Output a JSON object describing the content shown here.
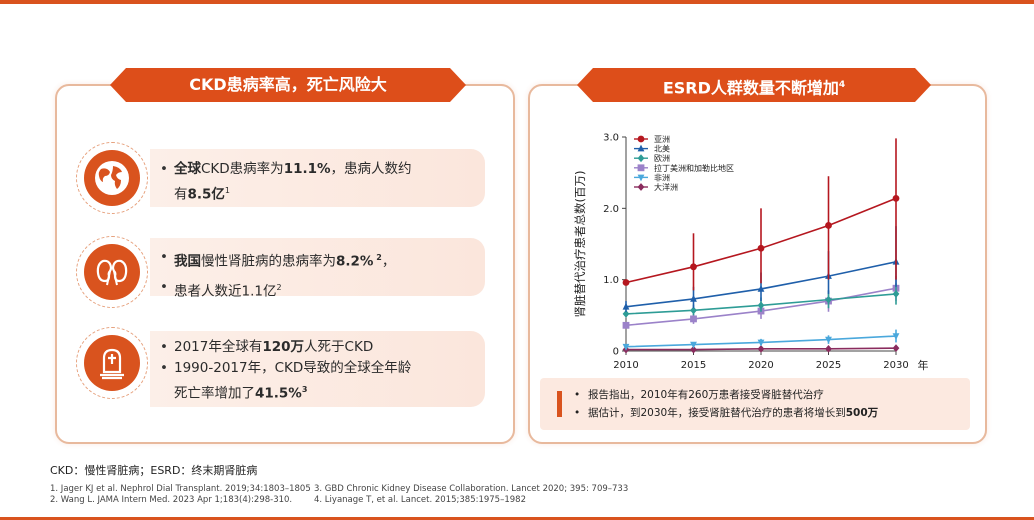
{
  "left_panel": {
    "title": "CKD患病率高，死亡风险大",
    "items": [
      {
        "icon": "globe-icon",
        "lines": [
          {
            "segments": [
              {
                "t": "全球",
                "b": true
              },
              {
                "t": "CKD患病率为",
                "b": false
              },
              {
                "t": "11.1%",
                "b": true
              },
              {
                "t": "，患病人数约",
                "b": false
              }
            ]
          },
          {
            "segments": [
              {
                "t": "有",
                "b": false
              },
              {
                "t": "8.5亿",
                "b": true
              },
              {
                "t": "1",
                "b": false,
                "sup": true
              }
            ],
            "continuation": true
          }
        ]
      },
      {
        "icon": "kidney-icon",
        "lines": [
          {
            "segments": [
              {
                "t": "我国",
                "b": true
              },
              {
                "t": "慢性肾脏病的患病率为",
                "b": false
              },
              {
                "t": "8.2%",
                "b": true
              },
              {
                "t": " 2",
                "b": true,
                "sup": true
              },
              {
                "t": "，",
                "b": false
              }
            ]
          },
          {
            "segments": [
              {
                "t": "患者人数近1.1亿",
                "b": false
              },
              {
                "t": "2",
                "b": false,
                "sup": true
              }
            ]
          }
        ]
      },
      {
        "icon": "tombstone-icon",
        "lines": [
          {
            "segments": [
              {
                "t": "2017年全球有",
                "b": false
              },
              {
                "t": "120万",
                "b": true
              },
              {
                "t": "人死于CKD",
                "b": false
              }
            ]
          },
          {
            "segments": [
              {
                "t": "1990-2017年，CKD导致的全球全年龄",
                "b": false
              }
            ]
          },
          {
            "segments": [
              {
                "t": "死亡率增加了",
                "b": false
              },
              {
                "t": "41.5%",
                "b": true
              },
              {
                "t": "3",
                "b": true,
                "sup": true
              }
            ],
            "continuation": true
          }
        ]
      }
    ]
  },
  "right_panel": {
    "title": "ESRD人群数量不断增加",
    "title_sup": "4",
    "notes": [
      {
        "segments": [
          {
            "t": "报告指出，2010年有260万患者接受肾脏替代治疗",
            "b": false
          }
        ]
      },
      {
        "segments": [
          {
            "t": "据估计，到2030年，接受肾脏替代治疗的患者将增长到",
            "b": false
          },
          {
            "t": "500万",
            "b": true
          }
        ]
      }
    ]
  },
  "chart_data": {
    "type": "line",
    "ylabel": "肾脏替代治疗患者总数(百万)",
    "xlabel_unit": "年",
    "x": [
      2010,
      2015,
      2020,
      2025,
      2030
    ],
    "xlim": [
      2010,
      2030
    ],
    "ylim": [
      0,
      3.0
    ],
    "yticks": [
      0,
      1.0,
      2.0,
      3.0
    ],
    "ytick_labels": [
      "0",
      "1.0",
      "2.0",
      "3.0"
    ],
    "legend_position": "top-left",
    "grid": false,
    "error_bars": true,
    "series": [
      {
        "name": "亚洲",
        "color": "#b5171f",
        "marker": "circle",
        "values": [
          0.96,
          1.18,
          1.44,
          1.76,
          2.14
        ],
        "err_low": [
          0.96,
          0.85,
          0.95,
          1.0,
          1.0
        ],
        "err_high": [
          0.96,
          1.65,
          2.0,
          2.45,
          2.98
        ]
      },
      {
        "name": "北美",
        "color": "#1f5faa",
        "marker": "triangle",
        "values": [
          0.62,
          0.73,
          0.87,
          1.05,
          1.25
        ],
        "err_low": [
          0.55,
          0.6,
          0.7,
          0.8,
          0.9
        ],
        "err_high": [
          0.7,
          0.9,
          1.1,
          1.4,
          1.75
        ]
      },
      {
        "name": "欧洲",
        "color": "#2e9c96",
        "marker": "diamond",
        "values": [
          0.52,
          0.57,
          0.64,
          0.72,
          0.8
        ],
        "err_low": [
          0.48,
          0.5,
          0.55,
          0.6,
          0.65
        ],
        "err_high": [
          0.56,
          0.65,
          0.75,
          0.85,
          0.95
        ]
      },
      {
        "name": "拉丁美洲和加勒比地区",
        "color": "#9b82c9",
        "marker": "square",
        "values": [
          0.36,
          0.45,
          0.56,
          0.7,
          0.88
        ],
        "err_low": [
          0.32,
          0.38,
          0.45,
          0.55,
          0.7
        ],
        "err_high": [
          0.4,
          0.52,
          0.68,
          0.85,
          1.05
        ]
      },
      {
        "name": "非洲",
        "color": "#4aa8dc",
        "marker": "triangle-down",
        "values": [
          0.06,
          0.09,
          0.12,
          0.16,
          0.21
        ],
        "err_low": [
          0.04,
          0.06,
          0.08,
          0.1,
          0.12
        ],
        "err_high": [
          0.08,
          0.12,
          0.17,
          0.22,
          0.3
        ]
      },
      {
        "name": "大洋洲",
        "color": "#8a2c5e",
        "marker": "diamond",
        "values": [
          0.02,
          0.02,
          0.03,
          0.03,
          0.04
        ],
        "err_low": [
          0.01,
          0.01,
          0.02,
          0.02,
          0.03
        ],
        "err_high": [
          0.03,
          0.03,
          0.04,
          0.04,
          0.05
        ]
      }
    ]
  },
  "footer": {
    "abbreviations": "CKD：慢性肾脏病；ESRD：终末期肾脏病",
    "refs_col1": [
      "1. Jager KJ et al. Nephrol Dial Transplant. 2019;34:1803–1805",
      "2. Wang L. JAMA Intern Med. 2023 Apr 1;183(4):298-310."
    ],
    "refs_col2": [
      "3.  GBD Chronic Kidney Disease Collaboration. Lancet 2020; 395: 709–733",
      "4.  Liyanage T, et al. Lancet. 2015;385:1975–1982"
    ]
  },
  "colors": {
    "accent": "#d9531e",
    "card_bg": "#fcefe8",
    "panel_border": "#e8b99d"
  }
}
